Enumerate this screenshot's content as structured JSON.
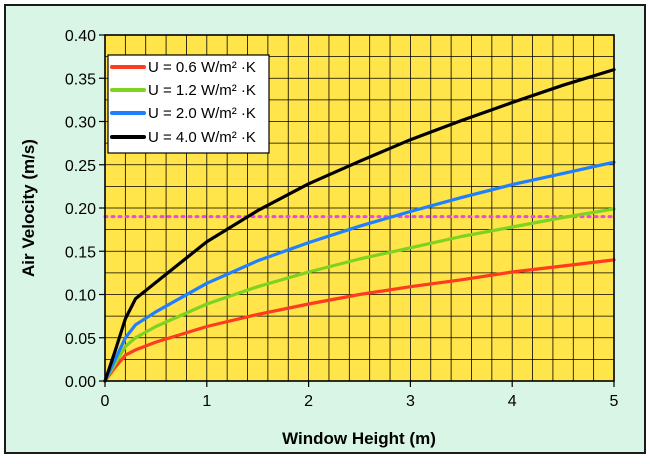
{
  "colors": {
    "panel_bg": "#d9f5e6",
    "panel_border": "#1a1a1a",
    "plot_bg": "#ffe44a",
    "grid": "#000000",
    "reference": "#ee44ee"
  },
  "chart_data": {
    "type": "line",
    "title": "",
    "xlabel": "Window Height (m)",
    "ylabel": "Air Velocity (m/s)",
    "xlim": [
      0,
      5
    ],
    "ylim": [
      0,
      0.4
    ],
    "xticks": [
      0,
      1,
      2,
      3,
      4,
      5
    ],
    "yticks": [
      "0.00",
      "0.05",
      "0.10",
      "0.15",
      "0.20",
      "0.25",
      "0.30",
      "0.35",
      "0.40"
    ],
    "grid": true,
    "legend_position": "top-left",
    "series": [
      {
        "name": "U = 0.6 W/m² ·K",
        "color": "#ff3b1f",
        "points": [
          [
            0,
            0
          ],
          [
            0.1,
            0.016
          ],
          [
            0.2,
            0.03
          ],
          [
            0.3,
            0.036
          ],
          [
            0.5,
            0.045
          ],
          [
            1,
            0.063
          ],
          [
            1.5,
            0.077
          ],
          [
            2,
            0.089
          ],
          [
            2.5,
            0.1
          ],
          [
            3,
            0.109
          ],
          [
            3.5,
            0.117
          ],
          [
            4,
            0.126
          ],
          [
            4.5,
            0.133
          ],
          [
            5,
            0.14
          ]
        ]
      },
      {
        "name": "U = 1.2 W/m² ·K",
        "color": "#7ed321",
        "points": [
          [
            0,
            0
          ],
          [
            0.1,
            0.02
          ],
          [
            0.2,
            0.04
          ],
          [
            0.3,
            0.05
          ],
          [
            0.5,
            0.063
          ],
          [
            1,
            0.089
          ],
          [
            1.5,
            0.109
          ],
          [
            2,
            0.126
          ],
          [
            2.5,
            0.141
          ],
          [
            3,
            0.154
          ],
          [
            3.5,
            0.167
          ],
          [
            4,
            0.178
          ],
          [
            4.5,
            0.189
          ],
          [
            5,
            0.199
          ]
        ]
      },
      {
        "name": "U = 2.0 W/m² ·K",
        "color": "#1f7fff",
        "points": [
          [
            0,
            0
          ],
          [
            0.1,
            0.025
          ],
          [
            0.2,
            0.05
          ],
          [
            0.3,
            0.065
          ],
          [
            0.5,
            0.08
          ],
          [
            1,
            0.113
          ],
          [
            1.5,
            0.139
          ],
          [
            2,
            0.16
          ],
          [
            2.5,
            0.179
          ],
          [
            3,
            0.196
          ],
          [
            3.5,
            0.212
          ],
          [
            4,
            0.227
          ],
          [
            4.5,
            0.24
          ],
          [
            5,
            0.253
          ]
        ]
      },
      {
        "name": "U = 4.0 W/m² ·K",
        "color": "#000000",
        "points": [
          [
            0,
            0
          ],
          [
            0.1,
            0.035
          ],
          [
            0.2,
            0.072
          ],
          [
            0.3,
            0.095
          ],
          [
            0.5,
            0.114
          ],
          [
            1,
            0.161
          ],
          [
            1.5,
            0.197
          ],
          [
            2,
            0.228
          ],
          [
            2.5,
            0.254
          ],
          [
            3,
            0.279
          ],
          [
            3.5,
            0.301
          ],
          [
            4,
            0.322
          ],
          [
            4.5,
            0.342
          ],
          [
            5,
            0.36
          ]
        ]
      }
    ],
    "reference_line": {
      "y": 0.19,
      "style": "dotted"
    }
  }
}
